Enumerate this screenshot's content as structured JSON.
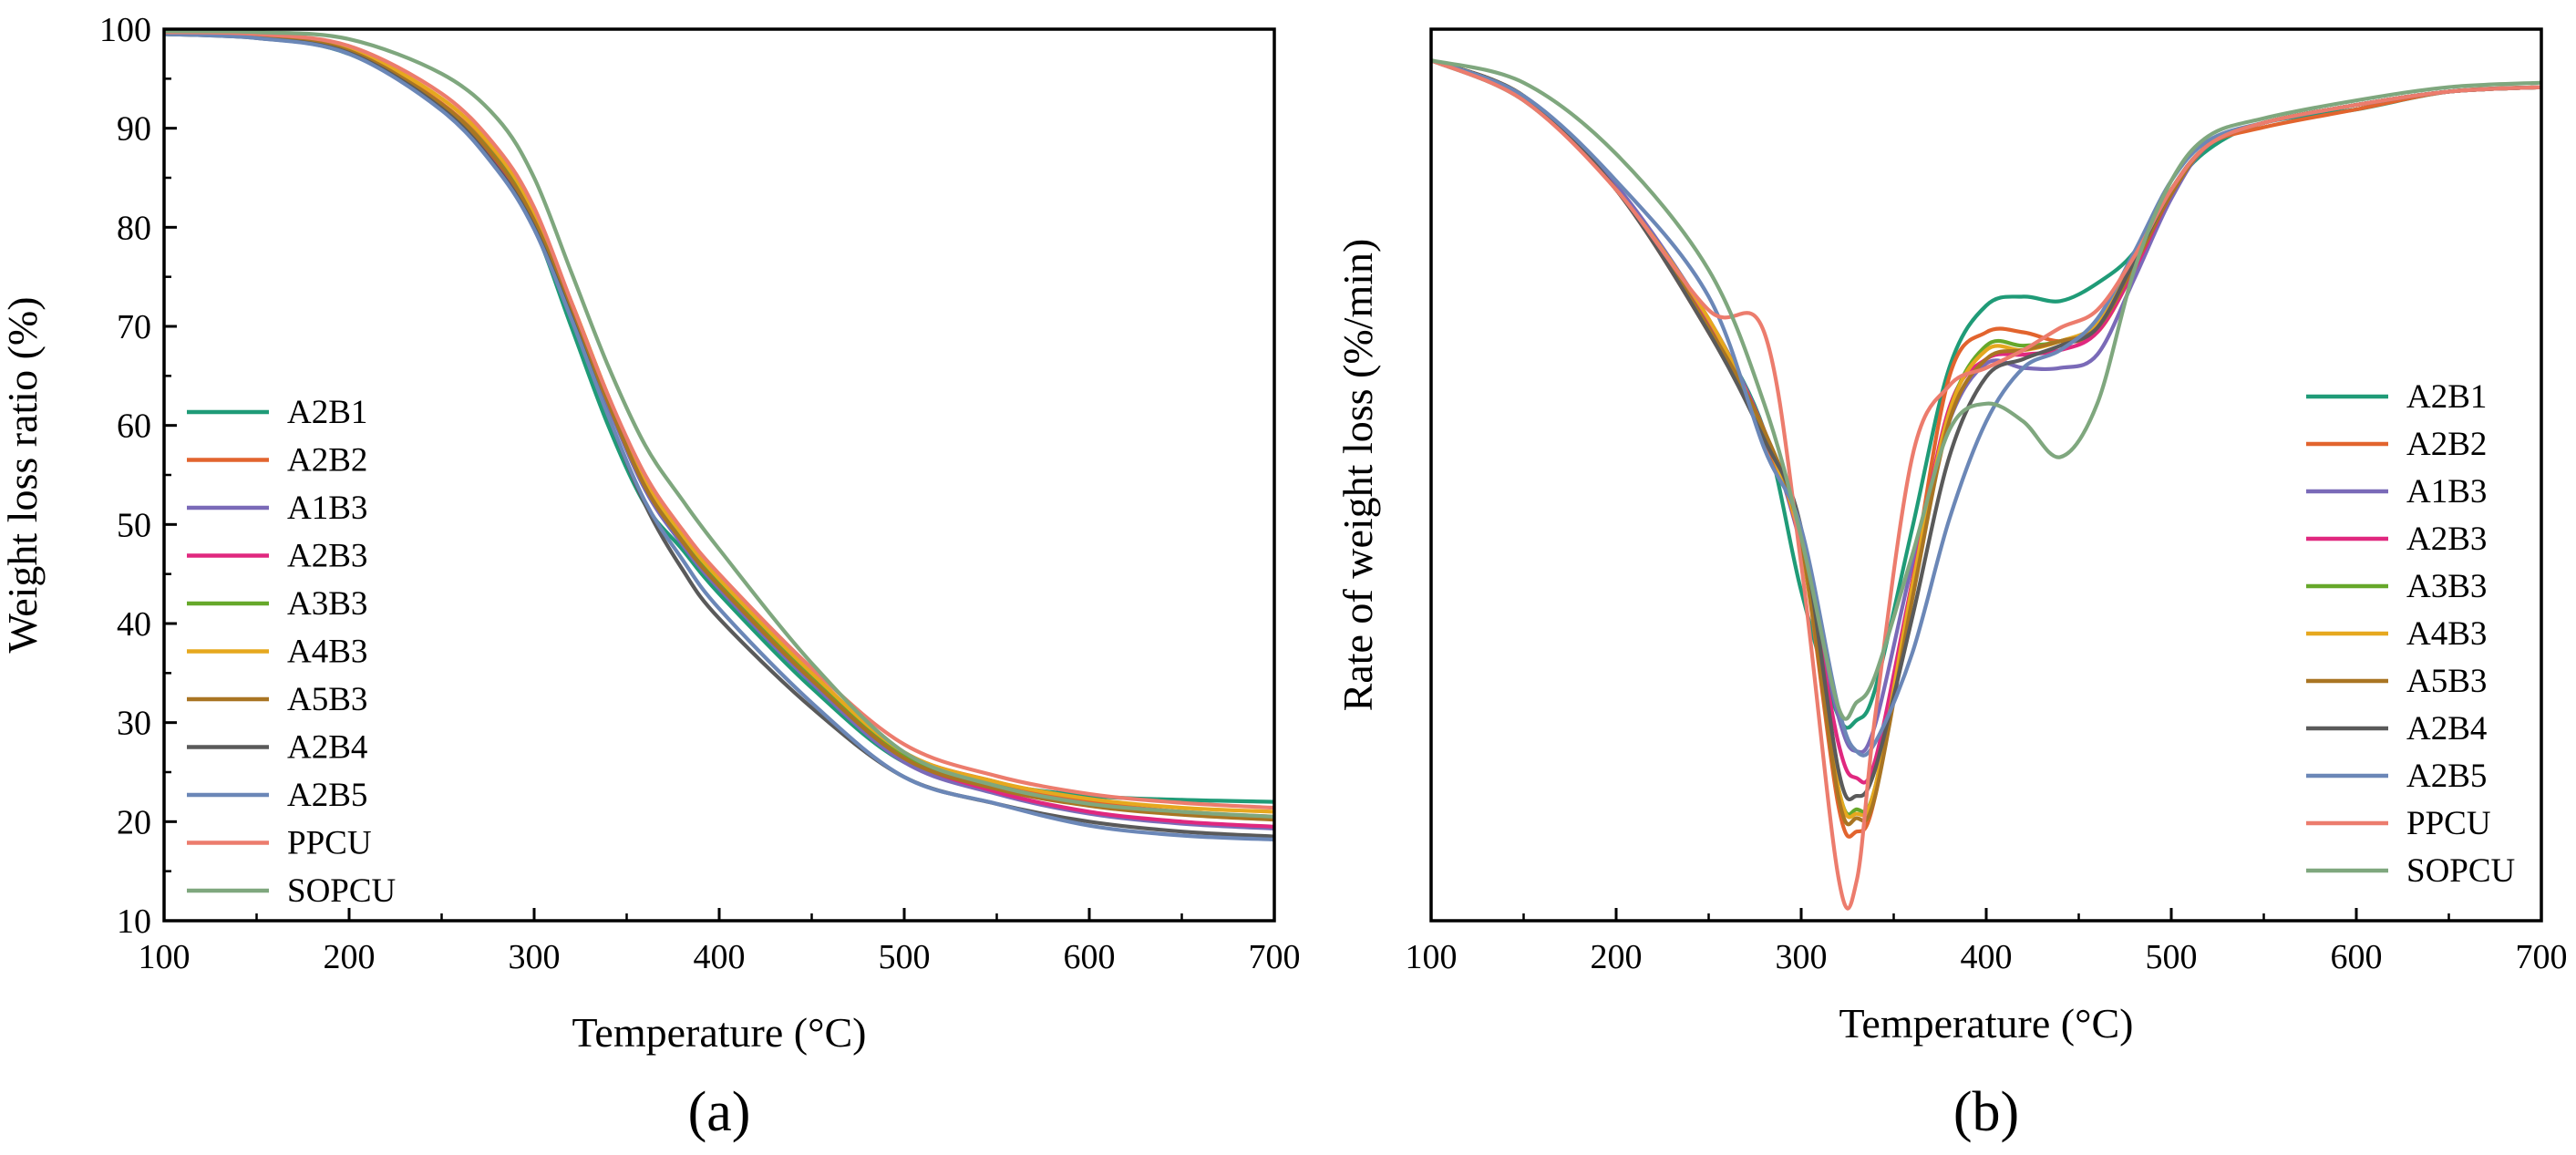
{
  "chart_data": [
    {
      "panel_label": "(a)",
      "type": "line",
      "title": "",
      "xlabel": "Temperature (°C)",
      "ylabel": "Weight loss ratio (%)",
      "xlim": [
        100,
        700
      ],
      "ylim": [
        10,
        100
      ],
      "xticks": [
        100,
        200,
        300,
        400,
        500,
        600,
        700
      ],
      "yticks": [
        10,
        20,
        30,
        40,
        50,
        60,
        70,
        80,
        90,
        100
      ],
      "grid": false,
      "legend_position": "left-middle",
      "x": [
        100,
        150,
        200,
        250,
        280,
        300,
        320,
        340,
        360,
        380,
        400,
        450,
        500,
        550,
        600,
        650,
        700
      ],
      "series": [
        {
          "name": "A2B1",
          "color": "#1f9b77",
          "values": [
            99.5,
            99.2,
            97.5,
            92.0,
            86.0,
            80.0,
            70.0,
            60.0,
            52.0,
            47.5,
            43.0,
            33.5,
            26.0,
            23.8,
            22.6,
            22.2,
            22.0
          ]
        },
        {
          "name": "A2B2",
          "color": "#e2642e",
          "values": [
            99.7,
            99.4,
            98.0,
            92.5,
            87.0,
            81.0,
            72.5,
            63.0,
            54.5,
            49.0,
            44.5,
            35.0,
            27.0,
            24.0,
            22.0,
            21.0,
            20.5
          ]
        },
        {
          "name": "A1B3",
          "color": "#7a6ab8",
          "values": [
            99.6,
            99.3,
            97.8,
            92.3,
            86.5,
            80.5,
            71.5,
            62.0,
            53.5,
            48.0,
            43.5,
            34.0,
            26.0,
            22.8,
            20.8,
            19.8,
            19.3
          ]
        },
        {
          "name": "A2B3",
          "color": "#e0287f",
          "values": [
            99.6,
            99.3,
            97.8,
            92.3,
            86.5,
            80.5,
            71.8,
            62.5,
            54.0,
            48.5,
            44.0,
            34.5,
            26.5,
            23.0,
            21.0,
            20.0,
            19.5
          ]
        },
        {
          "name": "A3B3",
          "color": "#66a82a",
          "values": [
            99.6,
            99.3,
            97.8,
            92.4,
            86.8,
            80.8,
            72.0,
            62.8,
            54.3,
            48.8,
            44.3,
            34.8,
            26.8,
            23.5,
            21.7,
            20.8,
            20.3
          ]
        },
        {
          "name": "A4B3",
          "color": "#e6a81f",
          "values": [
            99.6,
            99.3,
            98.0,
            93.0,
            87.5,
            81.5,
            72.5,
            63.0,
            54.5,
            49.0,
            44.5,
            35.0,
            27.0,
            24.0,
            22.3,
            21.4,
            21.0
          ]
        },
        {
          "name": "A5B3",
          "color": "#a97523",
          "values": [
            99.6,
            99.3,
            97.8,
            92.4,
            86.7,
            80.7,
            71.8,
            62.3,
            53.8,
            48.3,
            43.8,
            34.3,
            26.4,
            23.3,
            21.6,
            20.7,
            20.2
          ]
        },
        {
          "name": "A2B4",
          "color": "#5a5a5a",
          "values": [
            99.5,
            99.1,
            97.6,
            92.0,
            86.0,
            80.0,
            71.0,
            61.0,
            52.0,
            45.5,
            40.5,
            31.5,
            24.5,
            21.8,
            20.0,
            19.0,
            18.5
          ]
        },
        {
          "name": "A2B5",
          "color": "#6b87b7",
          "values": [
            99.5,
            99.1,
            97.5,
            91.8,
            85.8,
            79.8,
            70.8,
            61.0,
            52.3,
            46.5,
            41.5,
            32.0,
            24.5,
            21.8,
            19.6,
            18.6,
            18.2
          ]
        },
        {
          "name": "PPCU",
          "color": "#ec7c6d",
          "values": [
            99.7,
            99.5,
            98.3,
            93.5,
            88.0,
            82.0,
            72.5,
            63.0,
            55.0,
            49.5,
            45.0,
            35.5,
            27.8,
            24.6,
            22.8,
            21.9,
            21.4
          ]
        },
        {
          "name": "SOPCU",
          "color": "#7fa77e",
          "values": [
            99.8,
            99.7,
            99.0,
            95.5,
            91.0,
            85.0,
            75.5,
            66.0,
            58.0,
            52.5,
            47.5,
            36.0,
            27.0,
            23.6,
            21.8,
            21.0,
            20.5
          ]
        }
      ]
    },
    {
      "panel_label": "(b)",
      "type": "line",
      "title": "",
      "xlabel": "Temperature (°C)",
      "ylabel": "Rate of weight loss (%/min)",
      "xlim": [
        100,
        700
      ],
      "ylim": [
        0,
        100
      ],
      "y_tick_labels_shown": false,
      "xticks": [
        100,
        200,
        300,
        400,
        500,
        600,
        700
      ],
      "grid": false,
      "legend_position": "right-middle",
      "x": [
        100,
        150,
        200,
        250,
        280,
        300,
        320,
        330,
        340,
        360,
        380,
        400,
        420,
        440,
        460,
        480,
        500,
        520,
        550,
        600,
        650,
        700
      ],
      "series": [
        {
          "name": "A2B1",
          "color": "#1f9b77",
          "values": [
            96.5,
            92.0,
            82.0,
            67.0,
            55.0,
            37.0,
            23.0,
            22.5,
            26.0,
            44.0,
            62.0,
            69.0,
            70.0,
            69.5,
            71.5,
            75.0,
            82.0,
            86.5,
            89.5,
            91.0,
            93.0,
            93.5
          ]
        },
        {
          "name": "A2B2",
          "color": "#e2642e",
          "values": [
            96.5,
            92.5,
            82.0,
            66.0,
            54.0,
            42.0,
            13.0,
            10.0,
            14.0,
            38.0,
            61.0,
            66.0,
            66.0,
            65.0,
            66.0,
            73.0,
            81.5,
            87.0,
            89.0,
            91.0,
            93.0,
            93.5
          ]
        },
        {
          "name": "A1B3",
          "color": "#7a6ab8",
          "values": [
            96.5,
            92.5,
            82.5,
            67.5,
            55.0,
            42.0,
            23.0,
            19.0,
            22.0,
            40.0,
            56.0,
            62.5,
            62.0,
            62.0,
            63.5,
            72.0,
            81.0,
            87.0,
            89.5,
            91.5,
            93.0,
            93.5
          ]
        },
        {
          "name": "A2B3",
          "color": "#e0287f",
          "values": [
            96.5,
            92.5,
            82.0,
            67.0,
            55.0,
            42.0,
            20.0,
            16.0,
            18.0,
            38.0,
            57.5,
            63.0,
            63.5,
            64.0,
            66.0,
            73.0,
            81.5,
            87.0,
            89.5,
            91.5,
            93.0,
            93.5
          ]
        },
        {
          "name": "A3B3",
          "color": "#66a82a",
          "values": [
            96.5,
            92.5,
            82.0,
            66.5,
            54.5,
            42.0,
            15.0,
            12.5,
            15.0,
            37.0,
            57.0,
            64.5,
            64.5,
            65.0,
            67.0,
            74.0,
            82.0,
            87.0,
            89.5,
            91.5,
            93.0,
            93.5
          ]
        },
        {
          "name": "A4B3",
          "color": "#e6a81f",
          "values": [
            96.5,
            92.5,
            82.0,
            67.5,
            54.5,
            42.0,
            15.0,
            12.0,
            15.0,
            37.5,
            57.0,
            64.0,
            64.0,
            65.0,
            67.0,
            74.0,
            82.0,
            87.0,
            89.5,
            91.5,
            93.0,
            93.5
          ]
        },
        {
          "name": "A5B3",
          "color": "#a97523",
          "values": [
            96.5,
            92.5,
            82.0,
            66.5,
            55.0,
            42.5,
            14.0,
            11.5,
            14.0,
            36.0,
            56.0,
            63.0,
            64.0,
            65.0,
            66.5,
            73.5,
            81.5,
            87.0,
            89.5,
            91.5,
            93.0,
            93.5
          ]
        },
        {
          "name": "A2B4",
          "color": "#5a5a5a",
          "values": [
            96.5,
            92.5,
            82.0,
            66.0,
            54.0,
            44.0,
            17.0,
            14.0,
            17.0,
            34.0,
            52.0,
            61.0,
            63.0,
            64.5,
            66.5,
            74.0,
            82.0,
            87.0,
            89.5,
            91.5,
            93.0,
            93.5
          ]
        },
        {
          "name": "A2B5",
          "color": "#6b87b7",
          "values": [
            96.5,
            92.5,
            83.0,
            70.0,
            53.0,
            44.0,
            24.0,
            19.0,
            20.0,
            30.0,
            45.0,
            56.0,
            62.0,
            64.0,
            67.5,
            75.0,
            83.0,
            87.5,
            89.5,
            91.5,
            93.0,
            93.5
          ]
        },
        {
          "name": "PPCU",
          "color": "#ec7c6d",
          "values": [
            96.5,
            92.0,
            82.0,
            68.5,
            66.0,
            40.0,
            5.0,
            4.5,
            23.0,
            52.0,
            60.0,
            62.0,
            64.0,
            66.5,
            68.5,
            74.5,
            82.0,
            87.0,
            89.5,
            91.5,
            93.0,
            93.5
          ]
        },
        {
          "name": "SOPCU",
          "color": "#7fa77e",
          "values": [
            96.5,
            94.0,
            86.0,
            73.0,
            58.0,
            43.0,
            24.0,
            24.5,
            27.5,
            41.0,
            55.0,
            58.0,
            56.0,
            52.0,
            58.0,
            73.0,
            83.0,
            88.0,
            90.0,
            92.0,
            93.5,
            94.0
          ]
        }
      ]
    }
  ]
}
